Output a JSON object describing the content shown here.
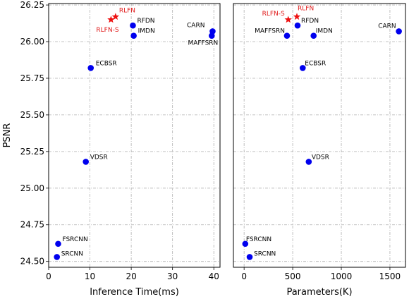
{
  "chart_data": [
    {
      "type": "scatter",
      "xlabel": "Inference Time(ms)",
      "ylabel": "PSNR",
      "xlim": [
        0,
        41.5
      ],
      "ylim": [
        24.46,
        26.26
      ],
      "xticks": [
        "0",
        "10",
        "20",
        "30",
        "40"
      ],
      "yticks": [
        "24.50",
        "24.75",
        "25.00",
        "25.25",
        "25.50",
        "25.75",
        "26.00",
        "26.25"
      ],
      "grid": true,
      "series": [
        {
          "marker": "circle",
          "color": "#0000ee",
          "points": [
            {
              "label": "SRCNN",
              "x": 2.0,
              "y": 24.53
            },
            {
              "label": "FSRCNN",
              "x": 2.3,
              "y": 24.62
            },
            {
              "label": "VDSR",
              "x": 9.0,
              "y": 25.18
            },
            {
              "label": "ECBSR",
              "x": 10.2,
              "y": 25.82
            },
            {
              "label": "IMDN",
              "x": 20.6,
              "y": 26.04
            },
            {
              "label": "RFDN",
              "x": 20.4,
              "y": 26.11
            },
            {
              "label": "CARN",
              "x": 39.7,
              "y": 26.07
            },
            {
              "label": "MAFFSRN",
              "x": 39.5,
              "y": 26.04
            }
          ]
        },
        {
          "marker": "star",
          "color": "#ee1111",
          "points": [
            {
              "label": "RLFN-S",
              "x": 15.1,
              "y": 26.15
            },
            {
              "label": "RLFN",
              "x": 16.2,
              "y": 26.17
            }
          ]
        }
      ]
    },
    {
      "type": "scatter",
      "xlabel": "Parameters(K)",
      "ylabel": "",
      "xlim": [
        -110,
        1660
      ],
      "ylim": [
        24.46,
        26.26
      ],
      "xticks": [
        "0",
        "500",
        "1000",
        "1500"
      ],
      "yticks": [],
      "grid": true,
      "series": [
        {
          "marker": "circle",
          "color": "#0000ee",
          "points": [
            {
              "label": "FSRCNN",
              "x": 12,
              "y": 24.62
            },
            {
              "label": "SRCNN",
              "x": 57,
              "y": 24.53
            },
            {
              "label": "VDSR",
              "x": 665,
              "y": 25.18
            },
            {
              "label": "ECBSR",
              "x": 603,
              "y": 25.82
            },
            {
              "label": "MAFFSRN",
              "x": 441,
              "y": 26.04
            },
            {
              "label": "RFDN",
              "x": 550,
              "y": 26.11
            },
            {
              "label": "IMDN",
              "x": 715,
              "y": 26.04
            },
            {
              "label": "CARN",
              "x": 1592,
              "y": 26.07
            }
          ]
        },
        {
          "marker": "star",
          "color": "#ee1111",
          "points": [
            {
              "label": "RLFN-S",
              "x": 454,
              "y": 26.15
            },
            {
              "label": "RLFN",
              "x": 543,
              "y": 26.17
            }
          ]
        }
      ]
    }
  ]
}
